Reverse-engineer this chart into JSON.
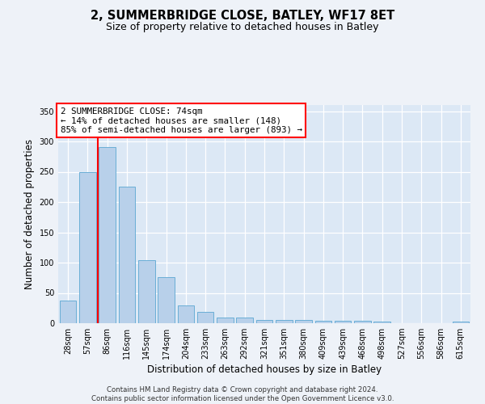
{
  "title": "2, SUMMERBRIDGE CLOSE, BATLEY, WF17 8ET",
  "subtitle": "Size of property relative to detached houses in Batley",
  "xlabel": "Distribution of detached houses by size in Batley",
  "ylabel": "Number of detached properties",
  "categories": [
    "28sqm",
    "57sqm",
    "86sqm",
    "116sqm",
    "145sqm",
    "174sqm",
    "204sqm",
    "233sqm",
    "263sqm",
    "292sqm",
    "321sqm",
    "351sqm",
    "380sqm",
    "409sqm",
    "439sqm",
    "468sqm",
    "498sqm",
    "527sqm",
    "556sqm",
    "586sqm",
    "615sqm"
  ],
  "values": [
    38,
    250,
    291,
    225,
    104,
    76,
    30,
    19,
    10,
    10,
    6,
    5,
    5,
    4,
    4,
    4,
    3,
    0,
    0,
    0,
    3
  ],
  "bar_color": "#b8d0ea",
  "bar_edge_color": "#6aaed6",
  "vline_position": 1.5,
  "vline_color": "red",
  "annotation_text": "2 SUMMERBRIDGE CLOSE: 74sqm\n← 14% of detached houses are smaller (148)\n85% of semi-detached houses are larger (893) →",
  "annotation_box_facecolor": "white",
  "annotation_box_edgecolor": "red",
  "ylim": [
    0,
    360
  ],
  "yticks": [
    0,
    50,
    100,
    150,
    200,
    250,
    300,
    350
  ],
  "footnote_line1": "Contains HM Land Registry data © Crown copyright and database right 2024.",
  "footnote_line2": "Contains public sector information licensed under the Open Government Licence v3.0.",
  "fig_facecolor": "#eef2f8",
  "ax_facecolor": "#dce8f5",
  "grid_color": "white"
}
